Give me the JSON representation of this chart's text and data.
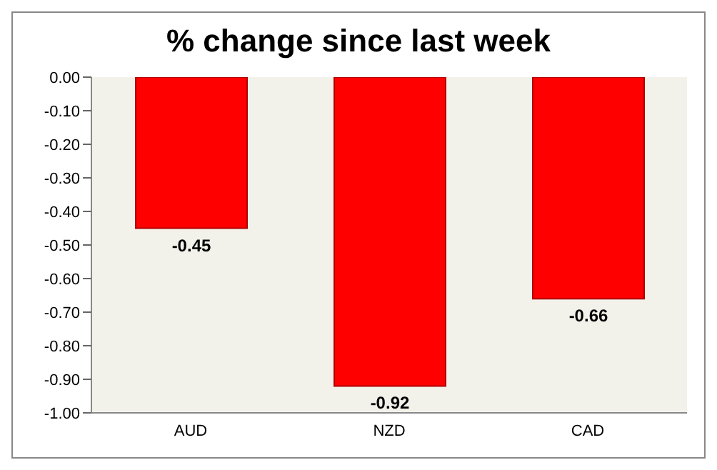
{
  "chart_data": {
    "type": "bar",
    "title": "% change since last week",
    "categories": [
      "AUD",
      "NZD",
      "CAD"
    ],
    "values": [
      -0.45,
      -0.92,
      -0.66
    ],
    "color": "#ff0000",
    "ylim": [
      -1,
      0
    ],
    "yticks": [
      {
        "value": 0,
        "label": "0.00"
      },
      {
        "value": -0.1,
        "label": "-0.10"
      },
      {
        "value": -0.2,
        "label": "-0.20"
      },
      {
        "value": -0.3,
        "label": "-0.30"
      },
      {
        "value": -0.4,
        "label": "-0.40"
      },
      {
        "value": -0.5,
        "label": "-0.50"
      },
      {
        "value": -0.6,
        "label": "-0.60"
      },
      {
        "value": -0.7,
        "label": "-0.70"
      },
      {
        "value": -0.8,
        "label": "-0.80"
      },
      {
        "value": -0.9,
        "label": "-0.90"
      },
      {
        "value": -1,
        "label": "-1.00"
      }
    ],
    "data_labels": true
  }
}
